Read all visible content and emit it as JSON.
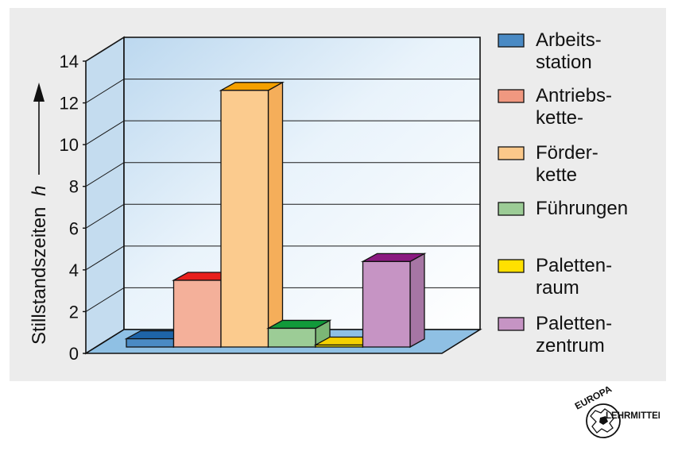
{
  "chart_data": {
    "type": "bar",
    "style": "3d",
    "ylabel_text": "Stillstandszeiten",
    "ylabel_symbol": "h",
    "ylim": [
      0,
      14
    ],
    "yticks": [
      "0",
      "2",
      "4",
      "6",
      "8",
      "10",
      "12",
      "14"
    ],
    "grid": true,
    "legend_position": "right",
    "categories": [
      "Arbeitsstation",
      "Antriebskette",
      "Förderkette",
      "Führungen",
      "Palettenraum",
      "Palettenzentrum"
    ],
    "values": [
      0.7,
      3.5,
      12.6,
      1.2,
      0.4,
      4.4
    ],
    "series_colors": [
      {
        "front": "#4a8ac4",
        "top": "#1e64a8",
        "side": "#3a74ae"
      },
      {
        "front": "#f4b09a",
        "top": "#e8201c",
        "side": "#e88e78"
      },
      {
        "front": "#fbcb8e",
        "top": "#f4a000",
        "side": "#f5ae5a"
      },
      {
        "front": "#9ccc96",
        "top": "#119a3a",
        "side": "#7cb676"
      },
      {
        "front": "#ffe800",
        "top": "#f4d000",
        "side": "#e0c800"
      },
      {
        "front": "#c694c4",
        "top": "#8a1a80",
        "side": "#a676a4"
      }
    ],
    "legend": [
      {
        "line1": "Arbeits-",
        "line2": "station",
        "color": "#4a8ac4"
      },
      {
        "line1": "Antriebs-",
        "line2": "kette-",
        "color": "#f09880"
      },
      {
        "line1": "Förder-",
        "line2": "kette",
        "color": "#fbc88a"
      },
      {
        "line1": "Führungen",
        "line2": "",
        "color": "#9ccc96"
      },
      {
        "line1": "Paletten-",
        "line2": "raum",
        "color": "#ffe000"
      },
      {
        "line1": "Paletten-",
        "line2": "zentrum",
        "color": "#c694c4"
      }
    ]
  },
  "logo": {
    "top_text": "EUROPA",
    "side_text": "LEHRMITTEL"
  }
}
